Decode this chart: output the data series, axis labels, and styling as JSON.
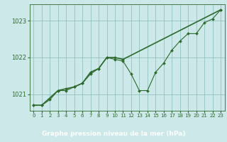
{
  "line1_x": [
    0,
    1,
    2,
    3,
    4,
    5,
    6,
    7,
    8,
    9,
    10,
    11,
    12,
    13,
    14,
    15,
    16,
    17,
    18,
    19,
    20,
    21,
    22,
    23
  ],
  "line1_y": [
    1020.7,
    1020.7,
    1020.85,
    1021.1,
    1021.1,
    1021.2,
    1021.3,
    1021.55,
    1021.7,
    1022.0,
    1021.95,
    1021.9,
    1021.55,
    1021.1,
    1021.1,
    1021.6,
    1021.85,
    1022.2,
    1022.45,
    1022.65,
    1022.65,
    1022.95,
    1023.05,
    1023.3
  ],
  "line2_x": [
    0,
    1,
    3,
    4,
    5,
    6,
    7,
    8,
    9,
    10,
    11,
    23
  ],
  "line2_y": [
    1020.7,
    1020.7,
    1021.1,
    1021.15,
    1021.2,
    1021.3,
    1021.6,
    1021.7,
    1022.0,
    1022.0,
    1021.95,
    1023.3
  ],
  "line_color": "#2d6a2d",
  "marker_color": "#2d6a2d",
  "bg_color": "#cce8e8",
  "grid_color": "#88bbbb",
  "xlabel": "Graphe pression niveau de la mer (hPa)",
  "xlabel_bg": "#2d6a2d",
  "xlabel_color": "#ffffff",
  "ylim": [
    1020.55,
    1023.45
  ],
  "xlim": [
    -0.5,
    23.5
  ],
  "yticks": [
    1021,
    1022,
    1023
  ],
  "xticks": [
    0,
    1,
    2,
    3,
    4,
    5,
    6,
    7,
    8,
    9,
    10,
    11,
    12,
    13,
    14,
    15,
    16,
    17,
    18,
    19,
    20,
    21,
    22,
    23
  ]
}
